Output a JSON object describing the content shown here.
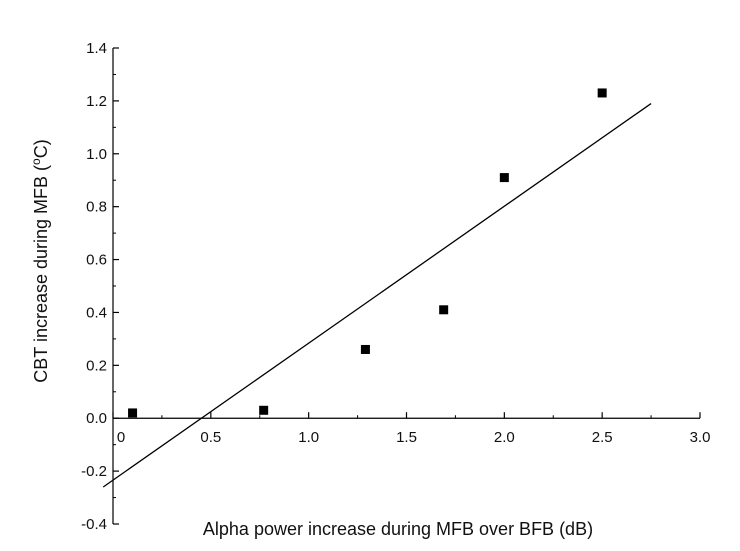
{
  "chart_data": {
    "type": "scatter",
    "xlabel": "Alpha power increase during MFB over BFB (dB)",
    "ylabel_main": "CBT increase during MFB (",
    "ylabel_sup": "o",
    "ylabel_unit": "C)",
    "xlim": [
      0,
      3.0
    ],
    "ylim": [
      -0.4,
      1.4
    ],
    "x_ticks": [
      0,
      0.5,
      1.0,
      1.5,
      2.0,
      2.5,
      3.0
    ],
    "x_tick_labels": [
      "0",
      "0.5",
      "1.0",
      "1.5",
      "2.0",
      "2.5",
      "3.0"
    ],
    "y_ticks": [
      -0.4,
      -0.2,
      0.0,
      0.2,
      0.4,
      0.6,
      0.8,
      1.0,
      1.2,
      1.4
    ],
    "y_tick_labels": [
      "-0.4",
      "-0.2",
      "0.0",
      "0.2",
      "0.4",
      "0.6",
      "0.8",
      "1.0",
      "1.2",
      "1.4"
    ],
    "points": [
      {
        "x": 0.1,
        "y": 0.02
      },
      {
        "x": 0.77,
        "y": 0.03
      },
      {
        "x": 1.29,
        "y": 0.26
      },
      {
        "x": 1.69,
        "y": 0.41
      },
      {
        "x": 2.0,
        "y": 0.91
      },
      {
        "x": 2.5,
        "y": 1.23
      }
    ],
    "fit_line": {
      "x_start": -0.05,
      "y_start": -0.26,
      "x_end": 2.75,
      "y_end": 1.19
    },
    "grid": false,
    "marker": "square",
    "colors": {
      "marker": "#000000",
      "line": "#000000",
      "axis": "#000000"
    }
  }
}
